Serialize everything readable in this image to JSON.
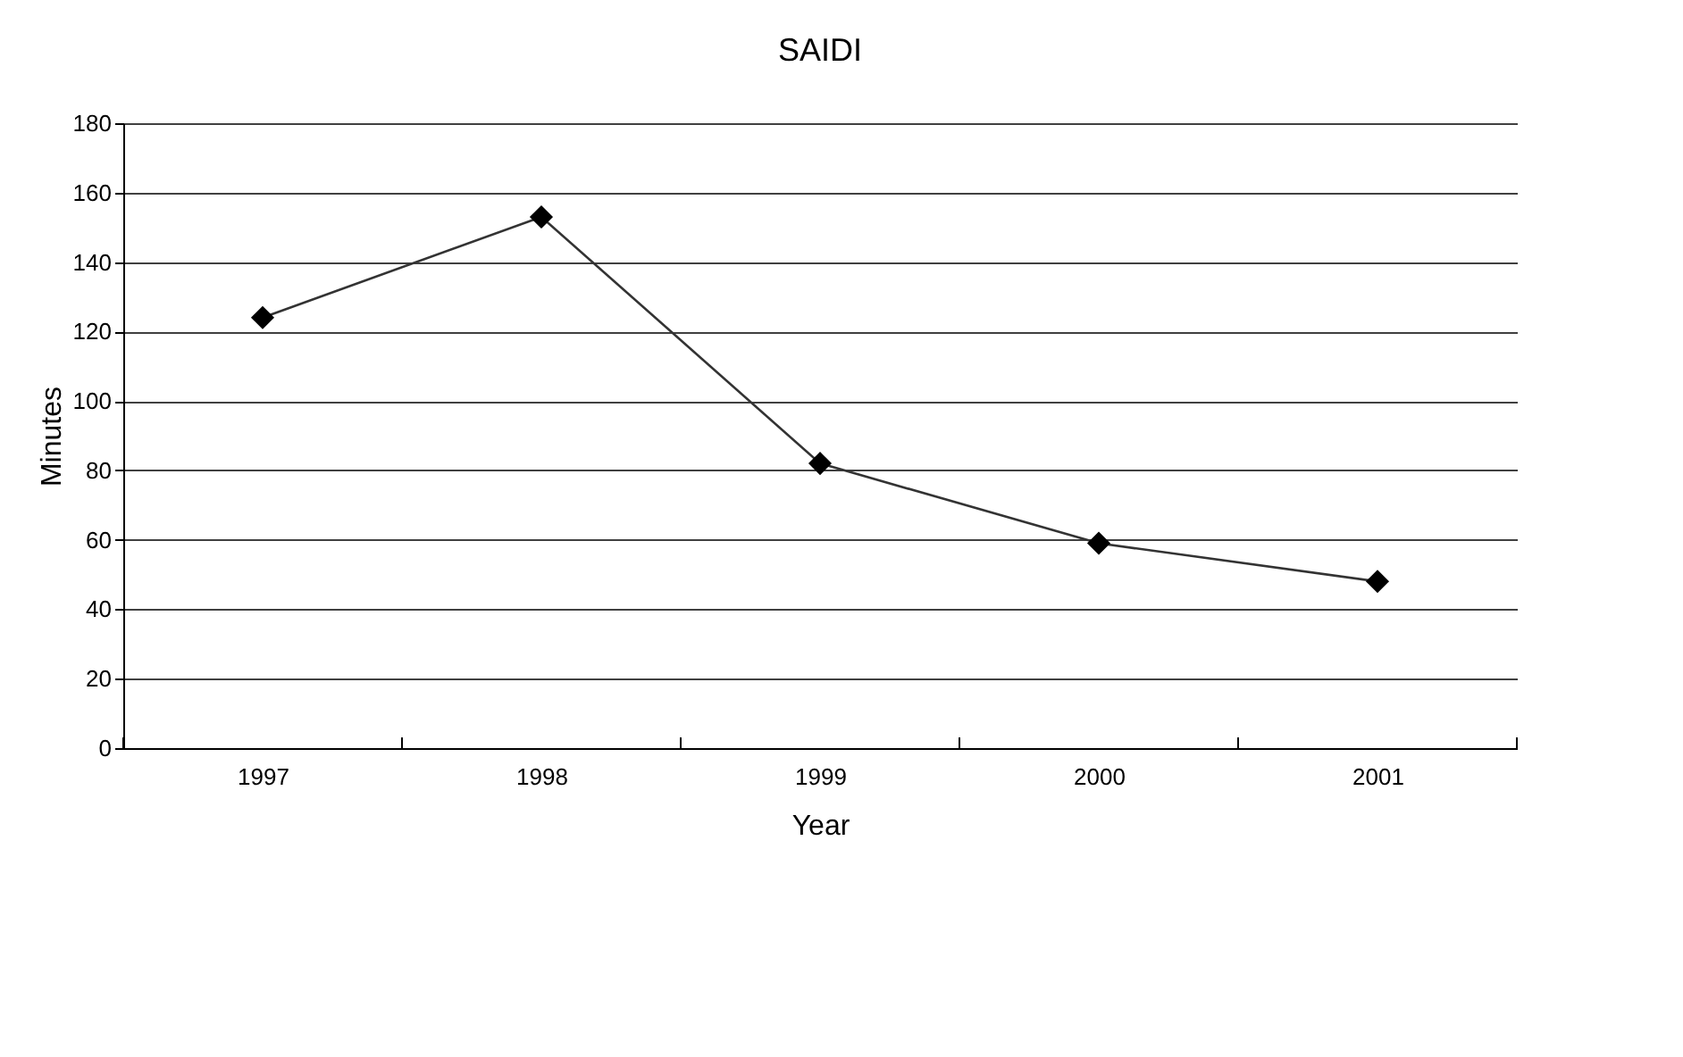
{
  "chart_data": {
    "type": "line",
    "title": "SAIDI",
    "xlabel": "Year",
    "ylabel": "Minutes",
    "categories": [
      "1997",
      "1998",
      "1999",
      "2000",
      "2001"
    ],
    "series": [
      {
        "color": "#000000",
        "values": [
          124,
          153,
          82,
          59,
          48
        ]
      }
    ],
    "ylim": [
      0,
      180
    ],
    "yticks": [
      0,
      20,
      40,
      60,
      80,
      100,
      120,
      140,
      160,
      180
    ],
    "grid": "y",
    "marker": "diamond",
    "line_style": "solid"
  }
}
